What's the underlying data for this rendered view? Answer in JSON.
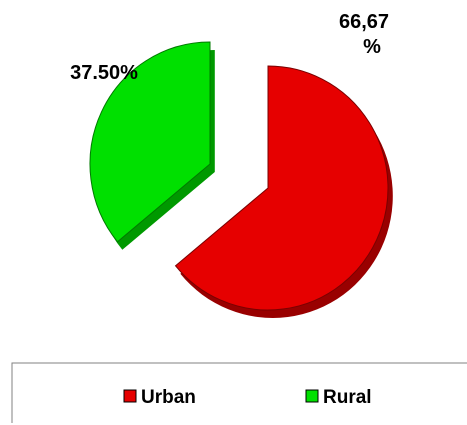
{
  "chart_data": {
    "type": "pie",
    "title": "",
    "slices": [
      {
        "name": "Urban",
        "value": 66.67,
        "label_line1": "66,67",
        "label_line2": "%",
        "color": "#e60000",
        "shade": "#990000"
      },
      {
        "name": "Rural",
        "value": 37.5,
        "label": "37.50%",
        "color": "#00e000",
        "shade": "#009900"
      }
    ],
    "legend": {
      "position": "bottom",
      "items": [
        {
          "label": "Urban",
          "color": "#e60000"
        },
        {
          "label": "Rural",
          "color": "#00e000"
        }
      ]
    }
  }
}
